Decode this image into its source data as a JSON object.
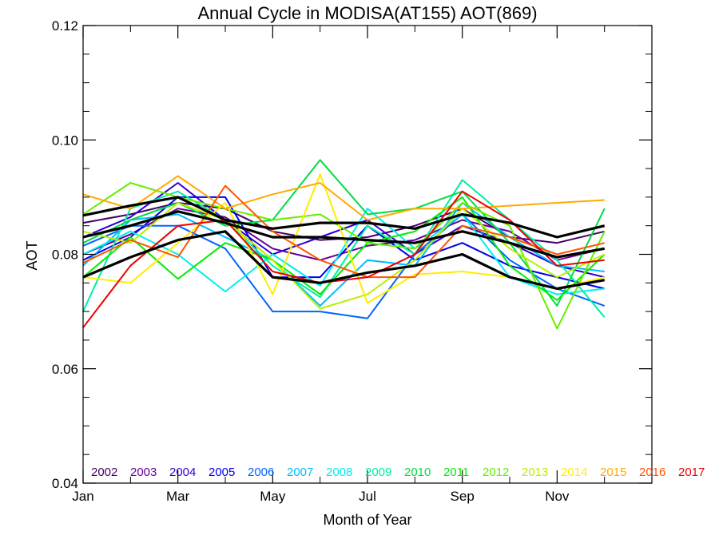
{
  "chart_data": {
    "type": "line",
    "title": "Annual Cycle in MODISA(AT155) AOT(869)",
    "xlabel": "Month of Year",
    "ylabel": "AOT",
    "xlim": [
      1,
      13
    ],
    "ylim": [
      0.04,
      0.12
    ],
    "x_ticks": [
      {
        "value": 1,
        "label": "Jan"
      },
      {
        "value": 3,
        "label": "Mar"
      },
      {
        "value": 5,
        "label": "May"
      },
      {
        "value": 7,
        "label": "Jul"
      },
      {
        "value": 9,
        "label": "Sep"
      },
      {
        "value": 11,
        "label": "Nov"
      }
    ],
    "y_ticks": [
      {
        "value": 0.04,
        "label": "0.04"
      },
      {
        "value": 0.06,
        "label": "0.06"
      },
      {
        "value": 0.08,
        "label": "0.08"
      },
      {
        "value": 0.1,
        "label": "0.10"
      },
      {
        "value": 0.12,
        "label": "0.12"
      }
    ],
    "x": [
      1,
      2,
      3,
      4,
      5,
      6,
      7,
      8,
      9,
      10,
      11,
      12
    ],
    "legend_position": "bottom",
    "series": [
      {
        "name": "2002",
        "color": "#440066",
        "values": [
          0.0855,
          0.087,
          0.089,
          0.088,
          0.084,
          0.0825,
          0.083,
          0.085,
          0.088,
          0.083,
          0.082,
          0.084
        ]
      },
      {
        "name": "2003",
        "color": "#660099",
        "values": [
          0.08,
          0.0835,
          0.088,
          0.0865,
          0.081,
          0.079,
          0.0815,
          0.0825,
          0.086,
          0.084,
          0.079,
          0.081
        ]
      },
      {
        "name": "2004",
        "color": "#3300cc",
        "values": [
          0.083,
          0.0865,
          0.0925,
          0.086,
          0.08,
          0.083,
          0.086,
          0.08,
          0.085,
          0.082,
          0.078,
          0.076
        ]
      },
      {
        "name": "2005",
        "color": "#0000ee",
        "values": [
          0.079,
          0.083,
          0.09,
          0.09,
          0.076,
          0.076,
          0.085,
          0.079,
          0.082,
          0.078,
          0.076,
          0.074
        ]
      },
      {
        "name": "2006",
        "color": "#0066ff",
        "values": [
          0.0815,
          0.085,
          0.085,
          0.081,
          0.07,
          0.07,
          0.0688,
          0.08,
          0.087,
          0.079,
          0.074,
          0.071
        ]
      },
      {
        "name": "2007",
        "color": "#00bbff",
        "values": [
          0.078,
          0.086,
          0.087,
          0.083,
          0.079,
          0.071,
          0.079,
          0.078,
          0.089,
          0.083,
          0.078,
          0.077
        ]
      },
      {
        "name": "2008",
        "color": "#00eeee",
        "values": [
          0.08,
          0.084,
          0.08,
          0.0735,
          0.08,
          0.0745,
          0.088,
          0.081,
          0.087,
          0.076,
          0.073,
          0.074
        ]
      },
      {
        "name": "2009",
        "color": "#00eeaa",
        "values": [
          0.07,
          0.088,
          0.091,
          0.086,
          0.078,
          0.0725,
          0.085,
          0.08,
          0.093,
          0.086,
          0.079,
          0.069
        ]
      },
      {
        "name": "2010",
        "color": "#00dd44",
        "values": [
          0.082,
          0.086,
          0.089,
          0.085,
          0.086,
          0.0965,
          0.087,
          0.088,
          0.091,
          0.082,
          0.071,
          0.088
        ]
      },
      {
        "name": "2011",
        "color": "#00ee00",
        "values": [
          0.076,
          0.083,
          0.0757,
          0.082,
          0.079,
          0.073,
          0.082,
          0.084,
          0.09,
          0.078,
          0.072,
          0.08
        ]
      },
      {
        "name": "2012",
        "color": "#66ee00",
        "values": [
          0.087,
          0.0925,
          0.09,
          0.088,
          0.086,
          0.087,
          0.082,
          0.081,
          0.089,
          0.085,
          0.067,
          0.084
        ]
      },
      {
        "name": "2013",
        "color": "#bbee00",
        "values": [
          0.084,
          0.082,
          0.089,
          0.086,
          0.079,
          0.0705,
          0.073,
          0.079,
          0.088,
          0.081,
          0.076,
          0.08
        ]
      },
      {
        "name": "2014",
        "color": "#ffee00",
        "values": [
          0.076,
          0.075,
          0.082,
          0.089,
          0.073,
          0.094,
          0.0715,
          0.0765,
          0.077,
          0.076,
          0.074,
          0.076
        ]
      },
      {
        "name": "2015",
        "color": "#ffaa00",
        "values": [
          0.0905,
          0.088,
          0.0937,
          0.088,
          0.0905,
          0.0925,
          0.086,
          0.088,
          0.088,
          0.0885,
          0.089,
          0.0895
        ]
      },
      {
        "name": "2016",
        "color": "#ff5500",
        "values": [
          0.0785,
          0.0825,
          0.0795,
          0.092,
          0.084,
          0.079,
          0.076,
          0.076,
          0.085,
          0.083,
          0.08,
          0.082
        ]
      },
      {
        "name": "2017",
        "color": "#ee0000",
        "values": [
          0.0672,
          0.078,
          0.085,
          0.086,
          0.077,
          0.075,
          0.076,
          0.08,
          0.091,
          0.086,
          0.078,
          0.079
        ]
      }
    ],
    "summary_lines": {
      "color": "#000000",
      "lines": [
        [
          0.0868,
          0.0885,
          0.09,
          0.086,
          0.0845,
          0.0855,
          0.0855,
          0.0845,
          0.087,
          0.0855,
          0.083,
          0.085
        ],
        [
          0.083,
          0.085,
          0.0875,
          0.0855,
          0.083,
          0.083,
          0.0825,
          0.082,
          0.084,
          0.082,
          0.0795,
          0.081
        ],
        [
          0.076,
          0.0795,
          0.0825,
          0.084,
          0.076,
          0.075,
          0.0768,
          0.078,
          0.08,
          0.076,
          0.074,
          0.0755
        ]
      ]
    }
  }
}
